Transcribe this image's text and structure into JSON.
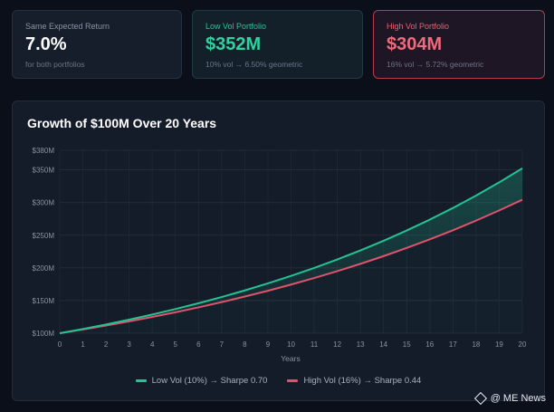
{
  "cards": [
    {
      "label": "Same Expected Return",
      "value": "7.0%",
      "sub": "for both portfolios"
    },
    {
      "label": "Low Vol Portfolio",
      "value": "$352M",
      "sub": "10% vol → 6.50% geometric"
    },
    {
      "label": "High Vol Portfolio",
      "value": "$304M",
      "sub": "16% vol → 5.72% geometric"
    }
  ],
  "colors": {
    "low": "#22c493",
    "high": "#e0536a"
  },
  "watermark": {
    "text": "@ ME News",
    "icon": "diamond-logo-icon"
  },
  "chart_data": {
    "type": "line",
    "title": "Growth of $100M Over 20 Years",
    "xlabel": "Years",
    "ylabel": "",
    "x": [
      0,
      1,
      2,
      3,
      4,
      5,
      6,
      7,
      8,
      9,
      10,
      11,
      12,
      13,
      14,
      15,
      16,
      17,
      18,
      19,
      20
    ],
    "ylim": [
      100,
      380
    ],
    "yticks": [
      100,
      150,
      200,
      250,
      300,
      350,
      380
    ],
    "ytick_labels": [
      "$100M",
      "$150M",
      "$200M",
      "$250M",
      "$300M",
      "$350M",
      "$380M"
    ],
    "grid": true,
    "legend_position": "bottom-center",
    "series": [
      {
        "name": "Low Vol (10%) → Sharpe 0.70",
        "color": "#22c493",
        "values": [
          100,
          106.5,
          113.4,
          120.8,
          128.6,
          137.0,
          145.9,
          155.4,
          165.5,
          176.3,
          187.7,
          199.9,
          212.9,
          226.8,
          241.5,
          257.2,
          273.9,
          291.7,
          310.7,
          330.9,
          352.4
        ]
      },
      {
        "name": "High Vol (16%) → Sharpe 0.44",
        "color": "#e0536a",
        "values": [
          100,
          105.7,
          111.8,
          118.2,
          124.9,
          132.1,
          139.6,
          147.6,
          156.1,
          165.0,
          174.5,
          184.5,
          195.0,
          206.2,
          218.0,
          230.5,
          243.7,
          257.6,
          272.4,
          288.0,
          304.4
        ]
      }
    ]
  }
}
